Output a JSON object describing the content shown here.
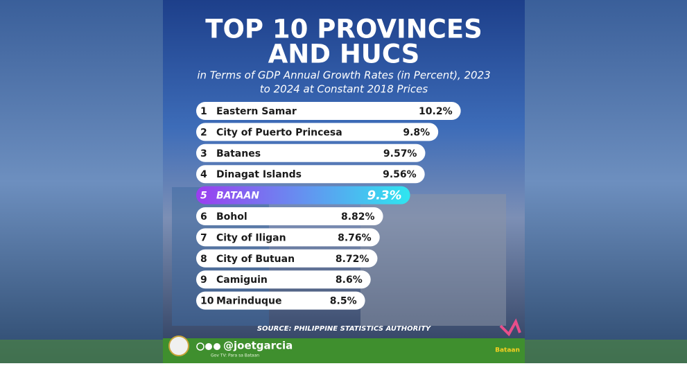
{
  "chart_data": {
    "type": "bar",
    "title_lines": [
      "TOP 10 PROVINCES",
      "AND HUCS"
    ],
    "subtitle_lines": [
      "in Terms of GDP Annual Growth Rates (in Percent), 2023",
      "to 2024 at Constant 2018 Prices"
    ],
    "ranks": [
      "1",
      "2",
      "3",
      "4",
      "5",
      "6",
      "7",
      "8",
      "9",
      "10"
    ],
    "categories": [
      "Eastern Samar",
      "City of Puerto Princesa",
      "Batanes",
      "Dinagat Islands",
      "BATAAN",
      "Bohol",
      "City of Iligan",
      "City of Butuan",
      "Camiguin",
      "Marinduque"
    ],
    "values": [
      10.2,
      9.8,
      9.57,
      9.56,
      9.3,
      8.82,
      8.76,
      8.72,
      8.6,
      8.5
    ],
    "value_labels": [
      "10.2%",
      "9.8%",
      "9.57%",
      "9.56%",
      "9.3%",
      "8.82%",
      "8.76%",
      "8.72%",
      "8.6%",
      "8.5%"
    ],
    "xlim": [
      5.5,
      10.5
    ],
    "color": "#ffffff",
    "highlight": 4,
    "highlight_colors": [
      "#9b3df0",
      "#2ee6f0"
    ],
    "source": "SOURCE: PHILIPPINE STATISTICS AUTHORITY",
    "handle": "@joetgarcia",
    "tagline": "Gov TV: Para sa Bataan",
    "logo": "Bataan"
  }
}
